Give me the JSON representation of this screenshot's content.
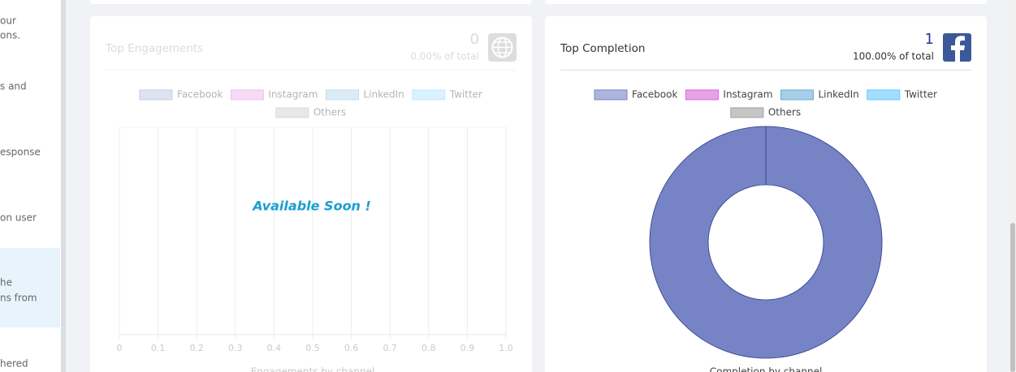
{
  "sidebar": {
    "items": [
      "our",
      "ons.",
      "s and",
      "esponse",
      "on user",
      "he",
      "ns from",
      "hered"
    ]
  },
  "chart_data": [
    {
      "type": "bar",
      "title": "Top Engagements",
      "total": 0,
      "share": "0.00% of total",
      "overlay": "Available Soon !",
      "x_label": "Engagements by channel",
      "series": [
        {
          "name": "Facebook",
          "color": "#7683c4"
        },
        {
          "name": "Instagram",
          "color": "#d966d9"
        },
        {
          "name": "LinkedIn",
          "color": "#6aaed6"
        },
        {
          "name": "Twitter",
          "color": "#66c8ff"
        },
        {
          "name": "Others",
          "color": "#a0a0a0"
        }
      ],
      "xlim": [
        0,
        1
      ],
      "xticks": [
        0,
        0.1,
        0.2,
        0.3,
        0.4,
        0.5,
        0.6,
        0.7,
        0.8,
        0.9,
        {
          "value": 1,
          "label": "1.0"
        }
      ],
      "grid": true,
      "faded": true
    },
    {
      "type": "doughnut",
      "title": "Top Completion",
      "total": 1,
      "share": "100.00% of total",
      "x_label": "Completion by channel",
      "categories": [
        "Facebook",
        "Instagram",
        "LinkedIn",
        "Twitter",
        "Others"
      ],
      "values": [
        1,
        0,
        0,
        0,
        0
      ],
      "colors": [
        "#7683c4",
        "#d966d9",
        "#6aaed6",
        "#66c8ff",
        "#a0a0a0"
      ],
      "faded": false
    }
  ]
}
